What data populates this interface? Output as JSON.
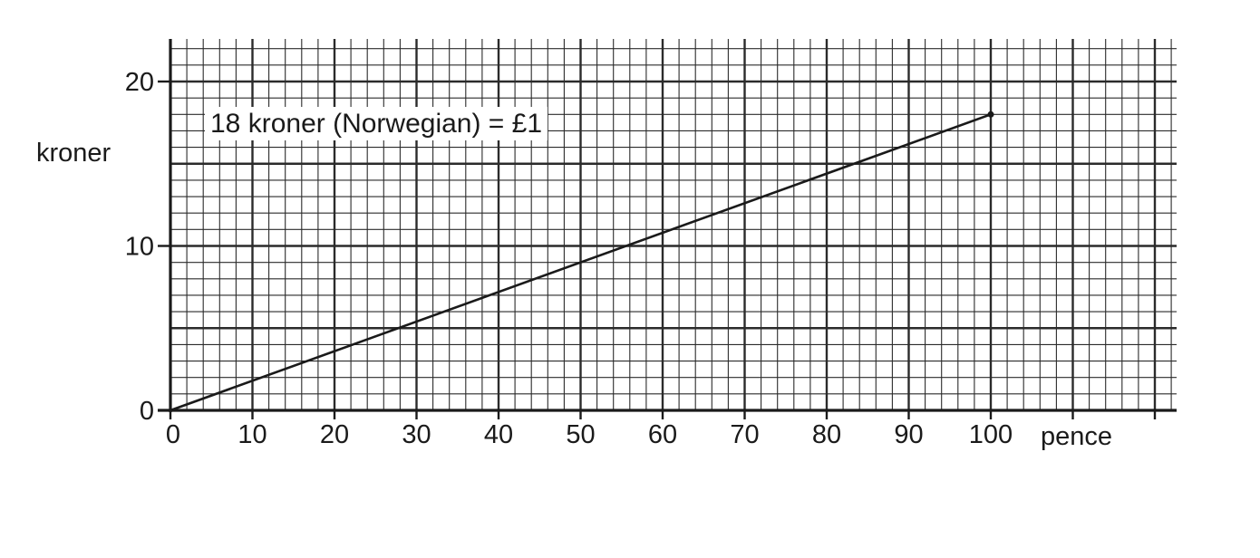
{
  "chart_data": {
    "type": "line",
    "xlabel": "pence",
    "ylabel": "kroner",
    "xlim": [
      0,
      120
    ],
    "ylim": [
      0,
      20
    ],
    "x_ticks": [
      0,
      10,
      20,
      30,
      40,
      50,
      60,
      70,
      80,
      90,
      100
    ],
    "y_ticks": [
      0,
      10,
      20
    ],
    "grid": true,
    "series": [
      {
        "x": [
          0,
          100
        ],
        "y": [
          0,
          18
        ]
      }
    ],
    "annotations": [
      {
        "text": "18 kroner (Norwegian) = £1"
      }
    ]
  },
  "colors": {
    "ink": "#1a1a1a",
    "grid": "#2b2b2b",
    "background": "#ffffff"
  }
}
